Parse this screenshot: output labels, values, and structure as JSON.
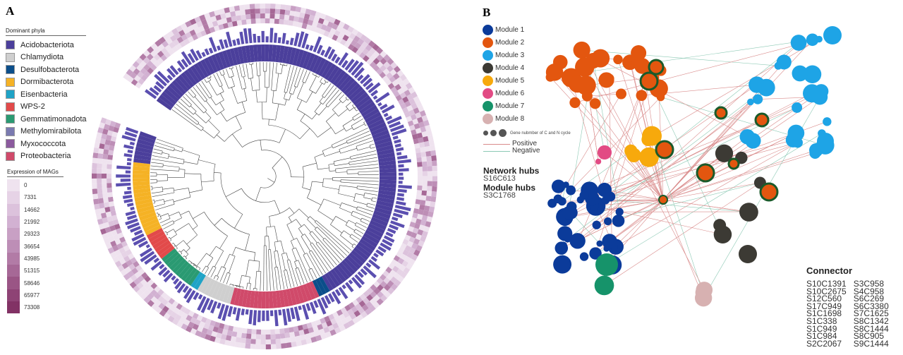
{
  "panel_a": {
    "letter": "A",
    "phyla_title": "Dominant phyla",
    "phyla": [
      {
        "name": "Acidobacteriota",
        "color": "#4b3f9b"
      },
      {
        "name": "Chlamydiota",
        "color": "#cfcfcf"
      },
      {
        "name": "Desulfobacterota",
        "color": "#0b4e8a"
      },
      {
        "name": "Dormibacterota",
        "color": "#f5b225"
      },
      {
        "name": "Eisenbacteria",
        "color": "#1fa3c6"
      },
      {
        "name": "WPS-2",
        "color": "#e24a4a"
      },
      {
        "name": "Gemmatimonadota",
        "color": "#2a9a72"
      },
      {
        "name": "Methylomirabilota",
        "color": "#7a7ab0"
      },
      {
        "name": "Myxococcota",
        "color": "#8b5a9e"
      },
      {
        "name": "Proteobacteria",
        "color": "#d04a6a"
      }
    ],
    "expression_title": "Expression of MAGs",
    "expression_scale": [
      "0",
      "7331",
      "14662",
      "21992",
      "29323",
      "36654",
      "43985",
      "51315",
      "58646",
      "65977",
      "73308"
    ],
    "expression_colors": [
      "#efe3ef",
      "#e6d3e6",
      "#dcc2dc",
      "#d2b1d2",
      "#c8a0c4",
      "#bd8eb6",
      "#b27ba6",
      "#a66896",
      "#9a5585",
      "#8e4375",
      "#823265"
    ]
  },
  "panel_b": {
    "letter": "B",
    "modules": [
      {
        "label": "Module 1",
        "color": "#0b3b9a"
      },
      {
        "label": "Module 2",
        "color": "#e3560f"
      },
      {
        "label": "Module 3",
        "color": "#1ea4e6"
      },
      {
        "label": "Module 4",
        "color": "#3c3a34"
      },
      {
        "label": "Module 5",
        "color": "#f7a90c"
      },
      {
        "label": "Module 6",
        "color": "#e24b84"
      },
      {
        "label": "Module 7",
        "color": "#16936a"
      },
      {
        "label": "Module 8",
        "color": "#d7b1b1"
      }
    ],
    "gene_size_label": "Gene nubmber of C and N cycle",
    "positive_label": "Positive",
    "negative_label": "Negative",
    "positive_color": "#d98a8a",
    "negative_color": "#8cc9b4",
    "network_hubs_title": "Network hubs",
    "network_hubs": [
      "S16C613"
    ],
    "module_hubs_title": "Module hubs",
    "module_hubs": [
      "S3C1768"
    ],
    "connector_title": "Connector",
    "connectors_col1": [
      "S10C1391",
      "S10C2675",
      "S12C560",
      "S17C949",
      "S1C1698",
      "S1C338",
      "S1C949",
      "S1C984",
      "S2C2067"
    ],
    "connectors_col2": [
      "S3C958",
      "S4C958",
      "S6C269",
      "S6C3380",
      "S7C1625",
      "S8C1342",
      "S8C1444",
      "S8C905",
      "S9C1444"
    ]
  }
}
